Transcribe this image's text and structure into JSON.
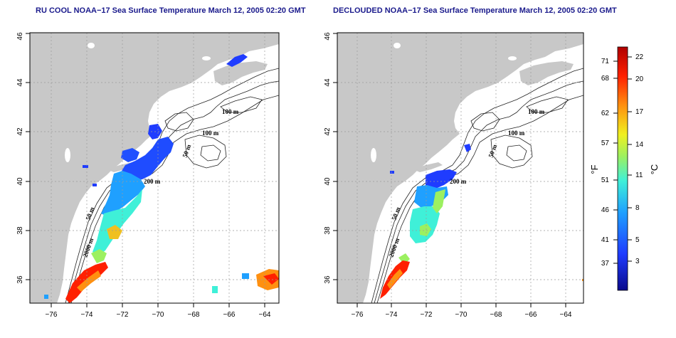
{
  "panels": [
    {
      "id": "left",
      "title": "RU COOL NOAA−17 Sea Surface Temperature March 12, 2005 02:20 GMT",
      "contour_labels": [
        "100 m",
        "100 m",
        "50 m",
        "200 m",
        "50 m",
        "2000 m"
      ]
    },
    {
      "id": "right",
      "title": "DECLOUDED NOAA−17 Sea Surface Temperature March 12, 2005 02:20 GMT",
      "contour_labels": [
        "100 m",
        "100 m",
        "50 m",
        "200 m",
        "50 m",
        "2000 m"
      ]
    }
  ],
  "axes": {
    "x_ticks": [
      "−76",
      "−74",
      "−72",
      "−70",
      "−68",
      "−66",
      "−64"
    ],
    "y_ticks": [
      "36",
      "38",
      "40",
      "42",
      "44",
      "46"
    ],
    "lon_range": [
      -77,
      -63
    ],
    "lat_range": [
      35,
      46
    ],
    "grid": true
  },
  "colorbar": {
    "fahrenheit_label": "°F",
    "celsius_label": "°C",
    "fahrenheit_ticks": [
      "71",
      "68",
      "62",
      "57",
      "51",
      "46",
      "41",
      "37"
    ],
    "celsius_ticks": [
      "22",
      "20",
      "17",
      "14",
      "11",
      "8",
      "5",
      "3"
    ],
    "celsius_range": [
      1,
      23
    ],
    "colors": [
      "#0a0a8c",
      "#1f3cff",
      "#1fa0ff",
      "#3ff0d8",
      "#9cf060",
      "#f0f020",
      "#ff9010",
      "#ff2000",
      "#b00000"
    ]
  },
  "colors": {
    "land": "#c8c8c8",
    "ocean": "#ffffff",
    "title": "#1a1a8c"
  }
}
